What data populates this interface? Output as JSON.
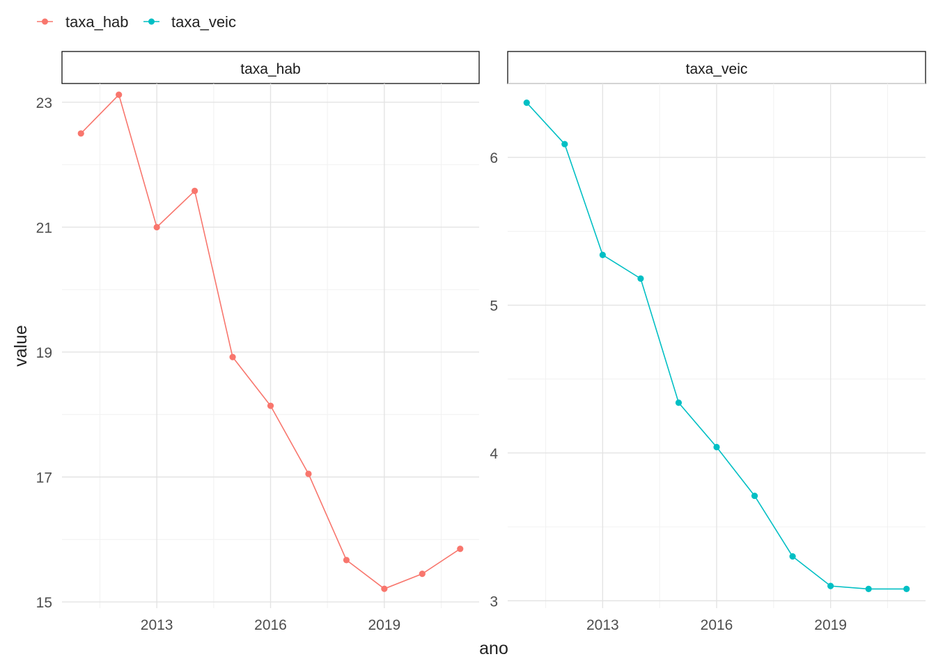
{
  "legend": {
    "position": "top-left",
    "items": [
      {
        "label": "taxa_hab",
        "color": "#F8766D"
      },
      {
        "label": "taxa_veic",
        "color": "#00BFC4"
      }
    ]
  },
  "chart_data": [
    {
      "type": "line",
      "facet_label": "taxa_hab",
      "series": [
        {
          "name": "taxa_hab",
          "color": "#F8766D",
          "x": [
            2011,
            2012,
            2013,
            2014,
            2015,
            2016,
            2017,
            2018,
            2019,
            2020,
            2021
          ],
          "values": [
            22.5,
            23.12,
            21.0,
            21.58,
            18.92,
            18.14,
            17.05,
            15.67,
            15.21,
            15.45,
            15.85
          ]
        }
      ],
      "xlabel": "ano",
      "ylabel": "value",
      "xlim": [
        2010.5,
        2021.5
      ],
      "ylim": [
        14.9,
        23.3
      ],
      "xticks": [
        2013,
        2016,
        2019
      ],
      "yticks": [
        15,
        17,
        19,
        21,
        23
      ],
      "grid": true
    },
    {
      "type": "line",
      "facet_label": "taxa_veic",
      "series": [
        {
          "name": "taxa_veic",
          "color": "#00BFC4",
          "x": [
            2011,
            2012,
            2013,
            2014,
            2015,
            2016,
            2017,
            2018,
            2019,
            2020,
            2021
          ],
          "values": [
            6.37,
            6.09,
            5.34,
            5.18,
            4.34,
            4.04,
            3.71,
            3.3,
            3.1,
            3.08,
            3.08
          ]
        }
      ],
      "xlabel": "ano",
      "ylabel": "value",
      "xlim": [
        2010.5,
        2021.5
      ],
      "ylim": [
        2.95,
        6.5
      ],
      "xticks": [
        2013,
        2016,
        2019
      ],
      "yticks": [
        3,
        4,
        5,
        6
      ],
      "grid": true
    }
  ]
}
